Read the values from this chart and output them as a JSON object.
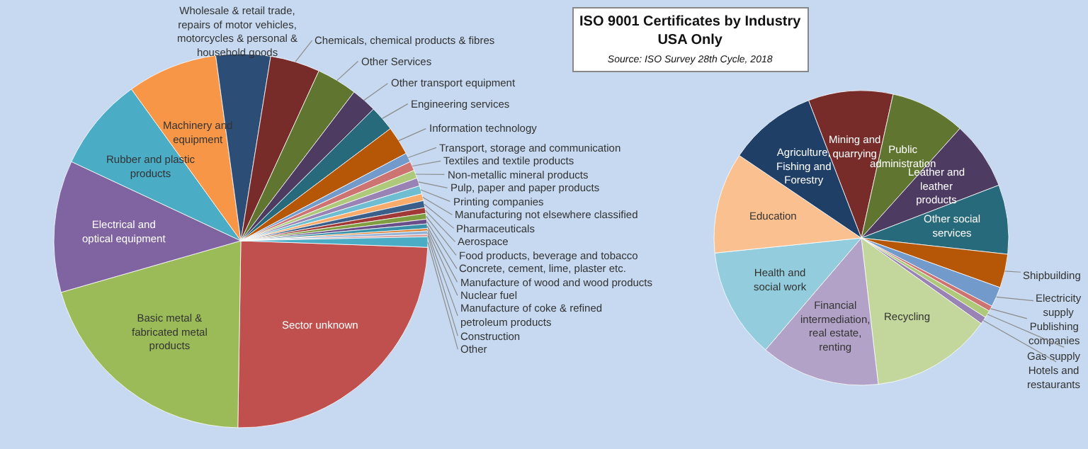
{
  "chart_data": [
    {
      "type": "pie",
      "title": "ISO 9001 Certificates by Industry",
      "subtitle": "USA Only",
      "annotations": [
        "Source: ISO Survey 28th Cycle, 2018"
      ],
      "categories": [
        "Sector unknown",
        "Basic metal & fabricated metal products",
        "Electrical and optical equipment",
        "Rubber and plastic products",
        "Machinery and equipment",
        "Wholesale & retail trade, repairs of motor vehicles, motorcycles & personal & household goods",
        "Chemicals, chemical products & fibres",
        "Other Services",
        "Other transport equipment",
        "Engineering services",
        "Information technology",
        "Transport, storage and communication",
        "Textiles and textile products",
        "Non-metallic mineral products",
        "Pulp, paper and paper products",
        "Printing companies",
        "Manufacturing not elsewhere classified",
        "Pharmaceuticals",
        "Aerospace",
        "Food products, beverage and tobacco",
        "Concrete, cement, lime, plaster etc.",
        "Manufacture of wood and wood products",
        "Nuclear fuel",
        "Manufacture of coke & refined petroleum products",
        "Construction",
        "Other"
      ],
      "values": [
        24.7,
        20.3,
        11.4,
        8.1,
        7.8,
        4.7,
        4.3,
        3.5,
        2.2,
        2.2,
        2.5,
        0.8,
        0.8,
        0.7,
        0.7,
        0.7,
        0.6,
        0.6,
        0.5,
        0.5,
        0.4,
        0.4,
        0.2,
        0.3,
        0.2,
        0.9
      ],
      "colors": [
        "#c0504d",
        "#9bbb59",
        "#8064a2",
        "#4bacc6",
        "#f79646",
        "#2c4d75",
        "#772c2a",
        "#5f7530",
        "#4d3b62",
        "#276a7c",
        "#b65708",
        "#729aca",
        "#cd7371",
        "#afc97a",
        "#9983b5",
        "#6fbdd1",
        "#f9ab6b",
        "#3a5f8b",
        "#a13a37",
        "#7e9e3f",
        "#684f8a",
        "#3791a8",
        "#d97a23",
        "#95b3d7",
        "#d99694",
        "#4bacc6"
      ]
    },
    {
      "type": "pie",
      "categories": [
        "Mining and quarrying",
        "Public administration",
        "Leather and leather products",
        "Other social services",
        "Shipbuilding",
        "Electricity supply",
        "Publishing companies",
        "Gas supply",
        "Hotels and restaurants",
        "Recycling",
        "Financial intermediation, real estate, renting",
        "Health and social work",
        "Education",
        "Agriculture, Fishing and Forestry"
      ],
      "values": [
        9.3,
        8.2,
        7.5,
        7.6,
        3.7,
        2.2,
        0.6,
        0.8,
        0.8,
        13.3,
        13.1,
        12.1,
        11.1,
        9.7
      ],
      "colors": [
        "#772c2a",
        "#5f7530",
        "#4d3b62",
        "#276a7c",
        "#b65708",
        "#729aca",
        "#cd7371",
        "#afc97a",
        "#9983b5",
        "#c3d69b",
        "#b3a2c7",
        "#93cddd",
        "#fac090",
        "#1f3f66"
      ]
    }
  ]
}
